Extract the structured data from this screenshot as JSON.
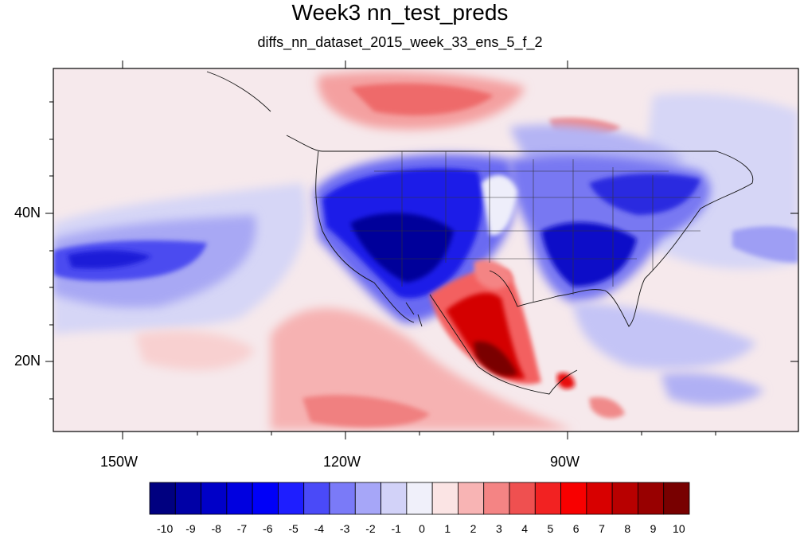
{
  "title": "Week3 nn_test_preds",
  "subtitle": "diffs_nn_dataset_2015_week_33_ens_5_f_2",
  "axes": {
    "lon_labels": [
      "150W",
      "120W",
      "90W"
    ],
    "lat_labels": [
      "40N",
      "20N"
    ]
  },
  "colorbar": {
    "labels": [
      "-10",
      "-9",
      "-8",
      "-7",
      "-6",
      "-5",
      "-4",
      "-3",
      "-2",
      "-1",
      "0",
      "1",
      "2",
      "3",
      "4",
      "5",
      "6",
      "7",
      "8",
      "9",
      "10"
    ],
    "colors": [
      "#000080",
      "#0000a6",
      "#0000c8",
      "#0000e0",
      "#0000f8",
      "#1e1eff",
      "#4a4af8",
      "#7a7af8",
      "#a6a6f8",
      "#d2d2f8",
      "#f0f0fa",
      "#fbe4e4",
      "#f8b4b4",
      "#f48484",
      "#ef5050",
      "#f22222",
      "#f80000",
      "#d80000",
      "#b80000",
      "#980000",
      "#780000"
    ]
  }
}
